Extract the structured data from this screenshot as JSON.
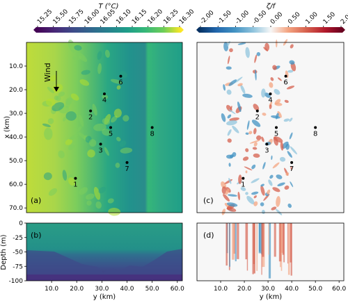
{
  "chart_data": [
    {
      "type": "heatmap",
      "panel_label": "(a)",
      "colorbar": {
        "label": "T (°C)",
        "ticks": [
          "15.25",
          "15.50",
          "15.75",
          "16.00",
          "16.05",
          "16.10",
          "16.15",
          "16.20",
          "16.25",
          "16.30"
        ],
        "colormap": "viridis",
        "extend": "both"
      },
      "ylabel": "x (km)",
      "xlabel": "",
      "yticks": [
        "10.0",
        "20.0",
        "30.0",
        "40.0",
        "50.0",
        "60.0",
        "70.0"
      ],
      "ylim": [
        0,
        72
      ],
      "xlim": [
        0,
        62
      ],
      "annotation": "Wind",
      "stations": [
        {
          "label": "1",
          "y_km": 19.5,
          "x_km": 57.5
        },
        {
          "label": "2",
          "y_km": 25.5,
          "x_km": 29.0
        },
        {
          "label": "3",
          "y_km": 29.5,
          "x_km": 43.0
        },
        {
          "label": "4",
          "y_km": 31.0,
          "x_km": 21.8
        },
        {
          "label": "5",
          "y_km": 33.5,
          "x_km": 36.0
        },
        {
          "label": "6",
          "y_km": 37.5,
          "x_km": 14.3
        },
        {
          "label": "7",
          "y_km": 40.0,
          "x_km": 50.8
        },
        {
          "label": "8",
          "y_km": 50.0,
          "x_km": 36.0
        }
      ]
    },
    {
      "type": "heatmap",
      "panel_label": "(b)",
      "ylabel": "Depth (m)",
      "xlabel": "y (km)",
      "xticks": [
        "10.0",
        "20.0",
        "30.0",
        "40.0",
        "50.0",
        "60.0"
      ],
      "yticks": [
        "0",
        "-25",
        "-50",
        "-75",
        "-100"
      ],
      "ylim": [
        -100,
        0
      ],
      "xlim": [
        0,
        62
      ]
    },
    {
      "type": "heatmap",
      "panel_label": "(c)",
      "colorbar": {
        "label": "ζ/f",
        "ticks": [
          "-2.00",
          "-1.50",
          "-1.00",
          "-0.50",
          "0.00",
          "0.50",
          "1.00",
          "1.50",
          "2.00"
        ],
        "colormap": "RdBu_r",
        "extend": "both"
      },
      "xlim": [
        0,
        62
      ],
      "ylim": [
        0,
        72
      ]
    },
    {
      "type": "heatmap",
      "panel_label": "(d)",
      "xlabel": "y (km)",
      "xticks": [
        "10.0",
        "20.0",
        "30.0",
        "40.0",
        "50.0",
        "60.0"
      ],
      "xlim": [
        0,
        62
      ],
      "ylim": [
        -100,
        0
      ]
    }
  ]
}
